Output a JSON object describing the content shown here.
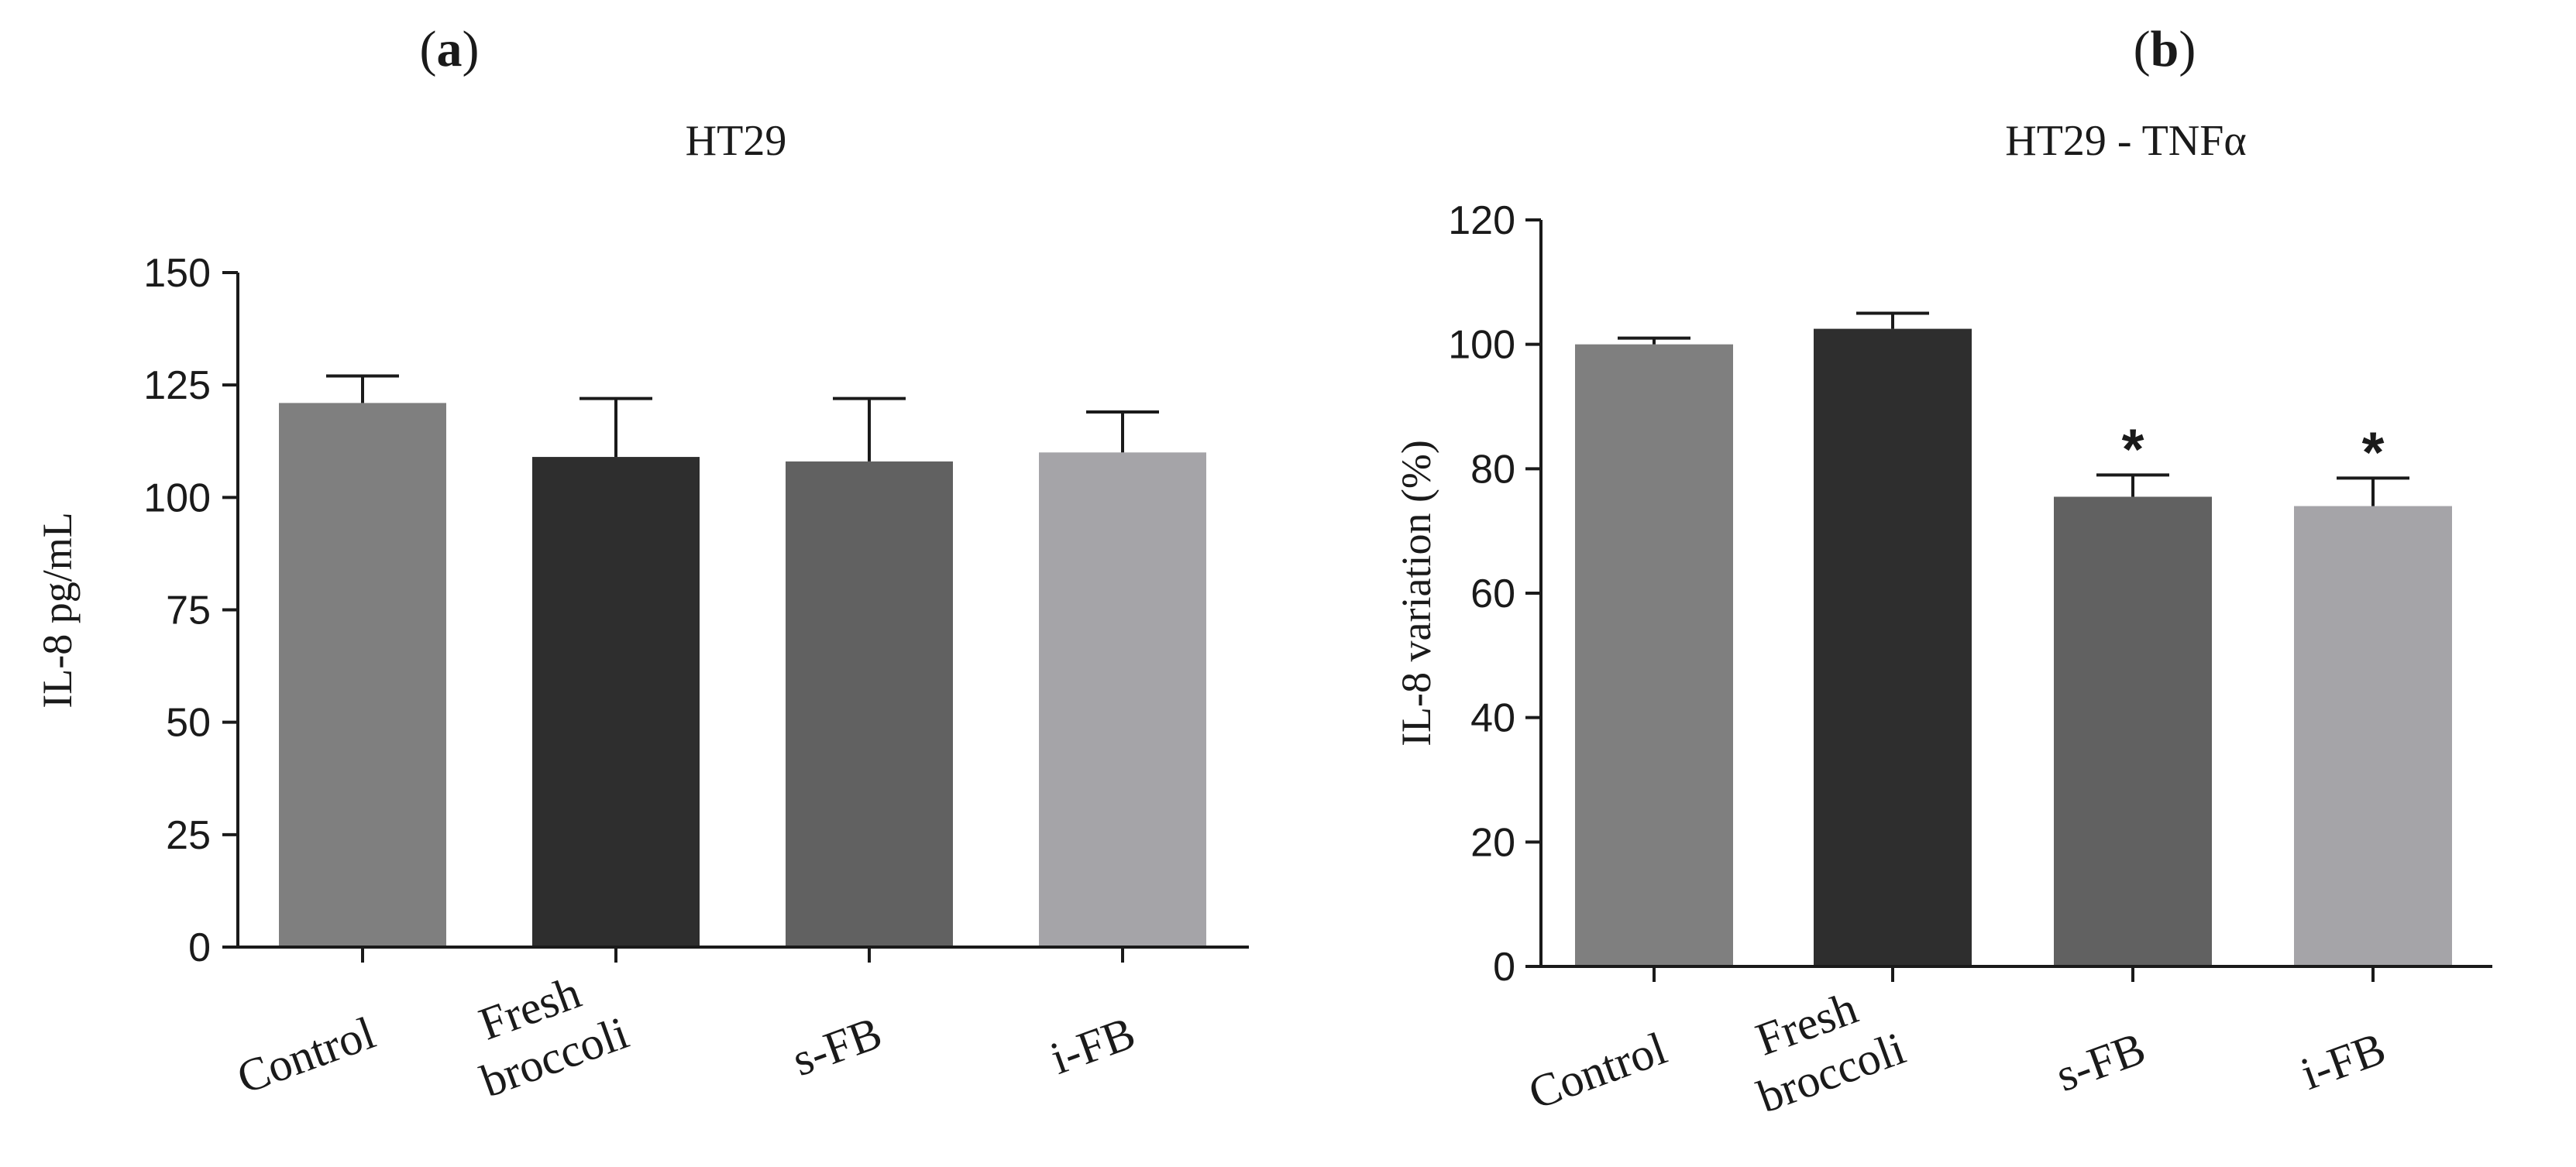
{
  "panels": [
    {
      "open": "(",
      "letter": "a",
      "close": ")"
    },
    {
      "open": "(",
      "letter": "b",
      "close": ")"
    }
  ],
  "chart_data": [
    {
      "type": "bar",
      "title": "HT29",
      "xlabel": "",
      "ylabel": "IL-8 pg/mL",
      "ylim": [
        0,
        150
      ],
      "yticks": [
        0,
        25,
        50,
        75,
        100,
        125,
        150
      ],
      "categories": [
        [
          "Control"
        ],
        [
          "Fresh",
          "broccoli"
        ],
        [
          "s-FB"
        ],
        [
          "i-FB"
        ]
      ],
      "values": [
        121,
        109,
        108,
        110
      ],
      "errors": [
        6,
        13,
        14,
        9
      ],
      "significance": [
        "",
        "",
        "",
        ""
      ],
      "colors": [
        "#7f7f7f",
        "#2e2e2e",
        "#616161",
        "#a5a4a8"
      ],
      "grid": false
    },
    {
      "type": "bar",
      "title": "HT29 - TNFα",
      "xlabel": "",
      "ylabel": "IL-8 variation (%)",
      "ylim": [
        0,
        120
      ],
      "yticks": [
        0,
        20,
        40,
        60,
        80,
        100,
        120
      ],
      "categories": [
        [
          "Control"
        ],
        [
          "Fresh",
          "broccoli"
        ],
        [
          "s-FB"
        ],
        [
          "i-FB"
        ]
      ],
      "values": [
        100,
        102.5,
        75.5,
        74
      ],
      "errors": [
        1,
        2.5,
        3.5,
        4.5
      ],
      "significance": [
        "",
        "",
        "*",
        "*"
      ],
      "colors": [
        "#7f7f7f",
        "#2e2e2e",
        "#616161",
        "#a5a4a8"
      ],
      "grid": false
    }
  ]
}
